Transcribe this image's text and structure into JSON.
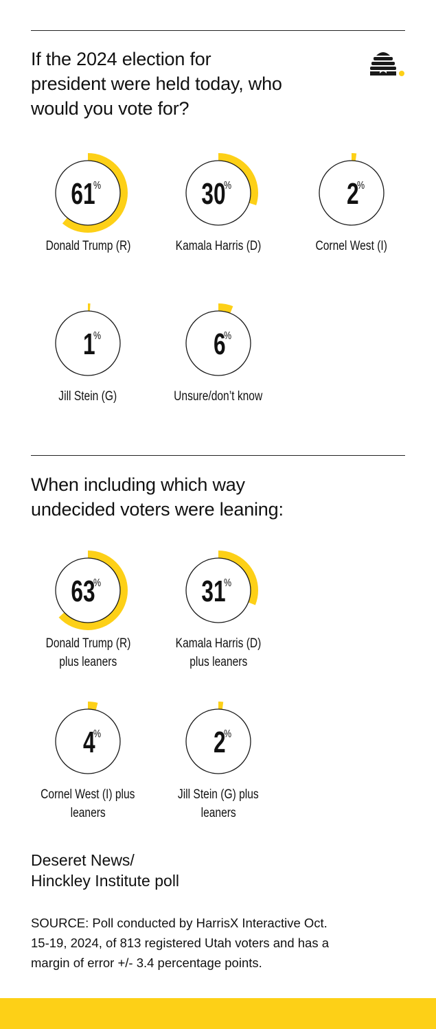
{
  "colors": {
    "accent": "#FDD017",
    "ring": "#1a1a1a",
    "text": "#111111"
  },
  "logo": {
    "icon": "beehive-icon"
  },
  "sections": [
    {
      "title": "If the 2024 election for president were held today, who would you vote for?",
      "title_lines": [
        "If the 2024 election for",
        "president were held today, who",
        "would you vote for?"
      ],
      "items": [
        {
          "value": 61,
          "value_label": "61",
          "unit": "%",
          "label_lines": [
            "Donald Trump (R)"
          ]
        },
        {
          "value": 30,
          "value_label": "30",
          "unit": "%",
          "label_lines": [
            "Kamala Harris (D)"
          ]
        },
        {
          "value": 2,
          "value_label": "2",
          "unit": "%",
          "label_lines": [
            "Cornel West (I)"
          ]
        },
        {
          "value": 1,
          "value_label": "1",
          "unit": "%",
          "label_lines": [
            "Jill Stein (G)"
          ]
        },
        {
          "value": 6,
          "value_label": "6",
          "unit": "%",
          "label_lines": [
            "Unsure/don’t know"
          ]
        }
      ]
    },
    {
      "title": "When including which way undecided voters were leaning:",
      "title_lines": [
        "When including which way",
        "undecided voters were leaning:"
      ],
      "items": [
        {
          "value": 63,
          "value_label": "63",
          "unit": "%",
          "label_lines": [
            "Donald Trump (R)",
            "plus leaners"
          ]
        },
        {
          "value": 31,
          "value_label": "31",
          "unit": "%",
          "label_lines": [
            "Kamala Harris (D)",
            "plus leaners"
          ]
        },
        {
          "value": 4,
          "value_label": "4",
          "unit": "%",
          "label_lines": [
            "Cornel West (I) plus",
            "leaners"
          ]
        },
        {
          "value": 2,
          "value_label": "2",
          "unit": "%",
          "label_lines": [
            "Jill Stein (G) plus",
            "leaners"
          ]
        }
      ]
    }
  ],
  "footer": {
    "poll_name_lines": [
      "Deseret News/",
      "Hinckley Institute poll"
    ],
    "source_lines": [
      "SOURCE: Poll conducted by HarrisX Interactive Oct.",
      "15-19, 2024, of 813 registered Utah voters and has a",
      "margin of error +/- 3.4 percentage points."
    ]
  },
  "chart_data": [
    {
      "type": "donut",
      "title": "If the 2024 election for president were held today, who would you vote for?",
      "categories": [
        "Donald Trump (R)",
        "Kamala Harris (D)",
        "Cornel West (I)",
        "Jill Stein (G)",
        "Unsure/don’t know"
      ],
      "values": [
        61,
        30,
        2,
        1,
        6
      ],
      "unit": "%"
    },
    {
      "type": "donut",
      "title": "When including which way undecided voters were leaning:",
      "categories": [
        "Donald Trump (R) plus leaners",
        "Kamala Harris (D) plus leaners",
        "Cornel West (I) plus leaners",
        "Jill Stein (G) plus leaners"
      ],
      "values": [
        63,
        31,
        4,
        2
      ],
      "unit": "%"
    }
  ]
}
